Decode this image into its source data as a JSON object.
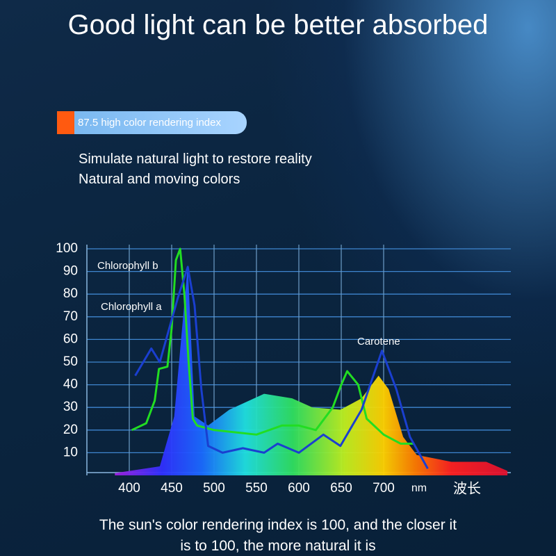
{
  "header": {
    "title": "Good light can be better absorbed"
  },
  "badge": {
    "text": "87.5 high color rendering index"
  },
  "intro": {
    "lines": [
      "Simulate natural light to restore reality",
      "Natural and moving colors"
    ]
  },
  "caption": {
    "lines": [
      "The sun's color rendering index is 100, and the closer it",
      "is to 100, the more natural it is"
    ]
  },
  "chart_data": {
    "type": "line",
    "xunit": "nm",
    "xlabel": "波长",
    "xlim": [
      350,
      850
    ],
    "xticks": [
      400,
      450,
      500,
      550,
      600,
      650,
      700
    ],
    "ylim": [
      0,
      100
    ],
    "yticks": [
      10,
      20,
      30,
      40,
      50,
      60,
      70,
      80,
      90,
      100
    ],
    "grid": true,
    "annotations": [
      "Chlorophyll b",
      "Chlorophyll a",
      "Carotene"
    ],
    "series": [
      {
        "fill": "gradient",
        "x": [
          383,
          436,
          453,
          469,
          477,
          493,
          518,
          559,
          592,
          616,
          649,
          674,
          694,
          706,
          723,
          739,
          780,
          821,
          846
        ],
        "values": [
          1,
          4,
          26,
          93,
          26,
          22,
          29,
          36,
          34,
          30,
          29,
          34,
          44,
          38,
          17,
          9,
          6,
          6,
          2
        ]
      },
      {
        "color": "#22dd22",
        "x": [
          403,
          420,
          430,
          435,
          445,
          450,
          455,
          460,
          465,
          470,
          475,
          480,
          500,
          550,
          580,
          600,
          620,
          640,
          650,
          657,
          670,
          680,
          700,
          720,
          735
        ],
        "values": [
          20,
          23,
          33,
          47,
          48,
          65,
          95,
          100,
          80,
          50,
          25,
          22,
          20,
          18,
          22,
          22,
          20,
          30,
          40,
          46,
          40,
          25,
          18,
          14,
          14
        ]
      },
      {
        "color": "#1a3fd0",
        "x": [
          407,
          426,
          436,
          457,
          469,
          477,
          485,
          493,
          510,
          534,
          559,
          575,
          600,
          629,
          649,
          674,
          698,
          715,
          731,
          752
        ],
        "values": [
          44,
          56,
          50,
          78,
          92,
          75,
          38,
          13,
          10,
          12,
          10,
          14,
          10,
          18,
          13,
          29,
          55,
          38,
          17,
          3
        ]
      }
    ]
  }
}
